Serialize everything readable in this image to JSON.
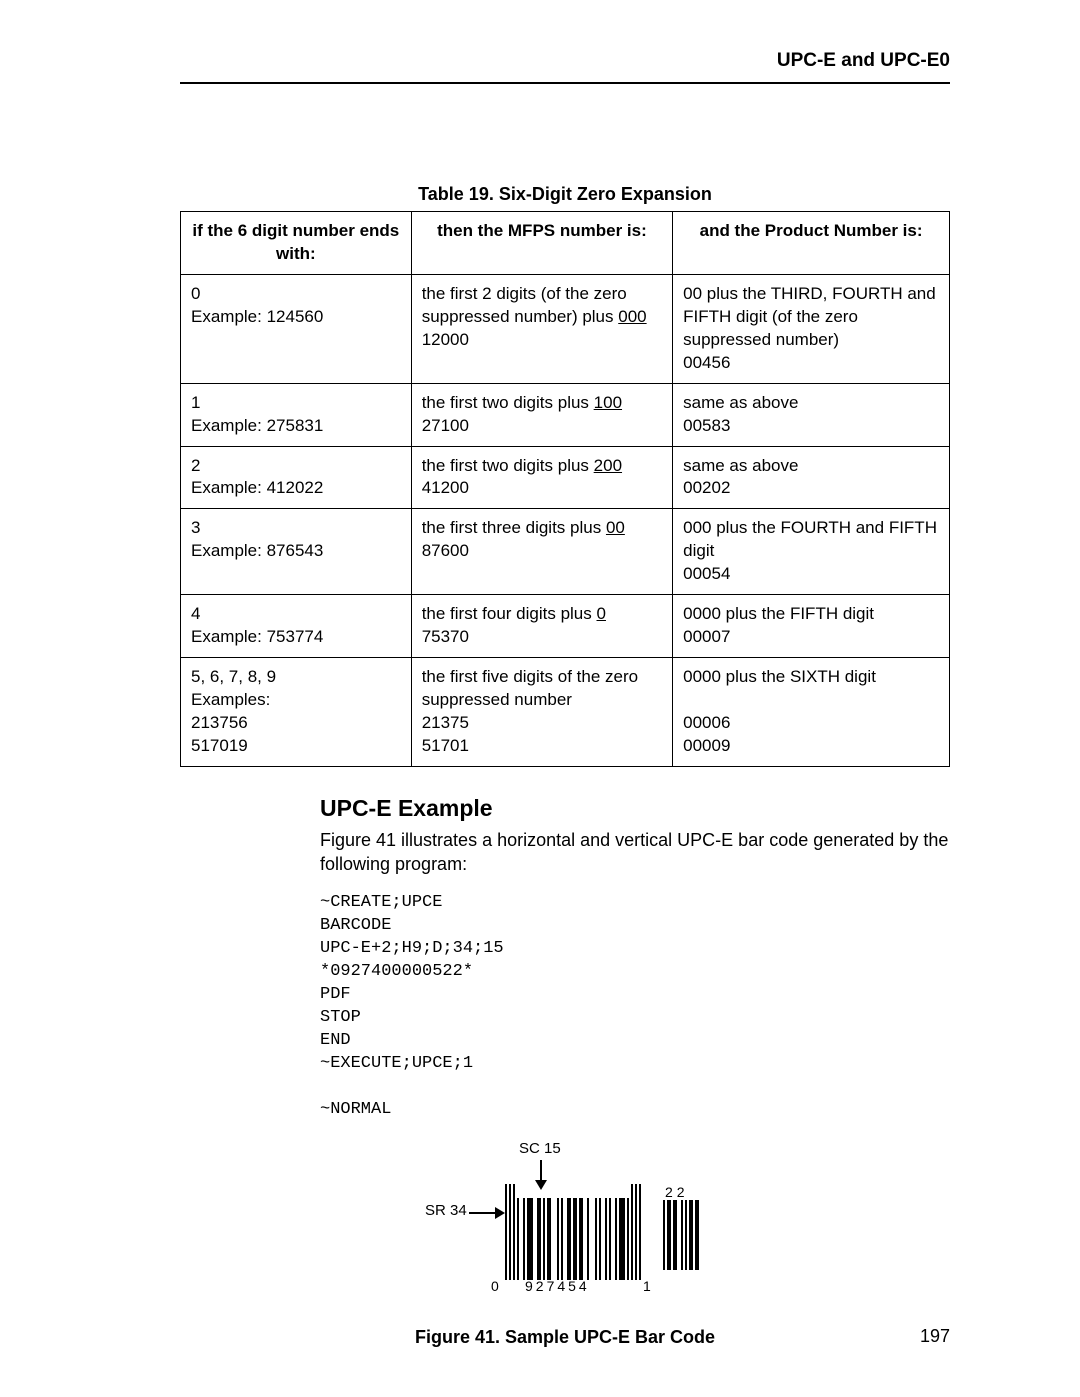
{
  "header": {
    "title": "UPC-E and UPC-E0"
  },
  "table": {
    "caption": "Table 19. Six-Digit Zero Expansion",
    "headers": {
      "c1": "if the 6 digit number ends with:",
      "c2": "then the MFPS number is:",
      "c3": "and the Product Number is:"
    },
    "rows": [
      {
        "c1a": "0",
        "c1b": "Example: 124560",
        "c2_pre": "the first 2 digits (of the zero suppressed number) plus ",
        "c2_u": "000",
        "c2_post": "",
        "c2_line2": "12000",
        "c3a": "00 plus the THIRD, FOURTH and FIFTH digit (of the zero suppressed number)",
        "c3b": "00456"
      },
      {
        "c1a": "1",
        "c1b": "Example: 275831",
        "c2_pre": "the first two digits plus ",
        "c2_u": "100",
        "c2_post": "",
        "c2_line2": "27100",
        "c3a": "same as above",
        "c3b": "00583"
      },
      {
        "c1a": "2",
        "c1b": "Example: 412022",
        "c2_pre": "the first two digits plus ",
        "c2_u": "200",
        "c2_post": "",
        "c2_line2": "41200",
        "c3a": "same as above",
        "c3b": "00202"
      },
      {
        "c1a": "3",
        "c1b": "Example: 876543",
        "c2_pre": "the first three digits plus ",
        "c2_u": "00",
        "c2_post": "",
        "c2_line2": "87600",
        "c3a": "000 plus the FOURTH and FIFTH digit",
        "c3b": "00054"
      },
      {
        "c1a": "4",
        "c1b": "Example: 753774",
        "c2_pre": "the first four digits plus ",
        "c2_u": "0",
        "c2_post": "",
        "c2_line2": "75370",
        "c3a": "0000 plus the FIFTH digit",
        "c3b": "00007"
      },
      {
        "c1a": "5, 6, 7, 8, 9",
        "c1b": "Examples:",
        "c1c": "213756",
        "c1d": "517019",
        "c2_pre": "the first five digits of the zero suppressed number",
        "c2_u": "",
        "c2_post": "",
        "c2_line2": "21375",
        "c2_line3": "51701",
        "c3a": "0000 plus the SIXTH digit",
        "c3b": "",
        "c3c": "00006",
        "c3d": "00009"
      }
    ]
  },
  "section": {
    "title": "UPC-E Example",
    "para": "Figure 41 illustrates a horizontal and vertical UPC-E bar code generated by the following program:",
    "code": "~CREATE;UPCE\nBARCODE\nUPC-E+2;H9;D;34;15\n*0927400000522*\nPDF\nSTOP\nEND\n~EXECUTE;UPCE;1\n\n~NORMAL"
  },
  "figure": {
    "sc_label": "SC 15",
    "sr_label": "SR 34",
    "digits_left": "0",
    "digits_center": "927454",
    "digits_right": "1",
    "addon_label": "22",
    "bar_pattern": [
      1,
      1,
      2,
      1,
      1,
      3,
      2,
      2,
      1,
      1,
      1,
      2,
      3,
      1,
      1,
      1,
      2,
      2,
      1,
      2,
      1,
      2,
      2,
      1,
      3,
      1,
      1,
      1,
      2,
      1,
      1,
      1,
      2,
      1,
      1,
      3,
      1,
      1,
      1
    ],
    "guard_left": [
      1,
      1,
      1,
      1,
      1
    ],
    "guard_right": [
      1,
      1,
      1,
      1,
      1,
      1
    ],
    "addon_pattern": [
      1,
      1,
      2,
      1,
      2,
      2,
      1,
      1,
      1,
      1,
      2,
      1,
      2,
      2
    ],
    "caption": "Figure 41. Sample UPC-E Bar Code"
  },
  "page_number": "197",
  "style": {
    "font_body": 18,
    "font_caption": 18,
    "font_header": 19,
    "colors": {
      "text": "#000000",
      "bg": "#ffffff",
      "border": "#000000"
    }
  }
}
